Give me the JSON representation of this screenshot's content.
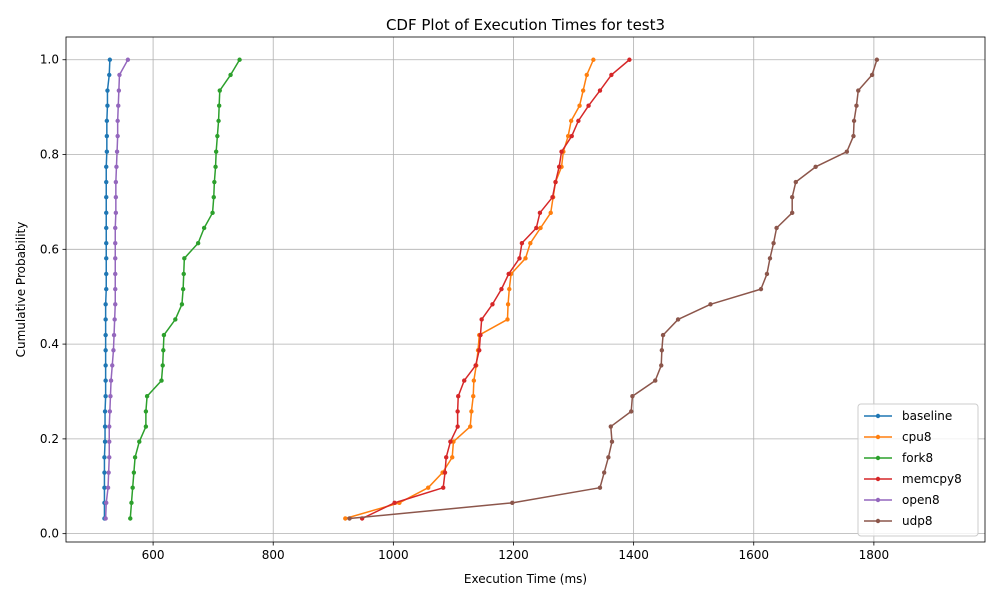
{
  "chart_data": {
    "type": "line",
    "title": "CDF Plot of Execution Times for test3",
    "xlabel": "Execution Time (ms)",
    "ylabel": "Cumulative Probability",
    "xlim": [
      455,
      1985
    ],
    "ylim": [
      -0.0176,
      1.048
    ],
    "xticks": [
      600,
      800,
      1000,
      1200,
      1400,
      1600,
      1800
    ],
    "xtick_labels": [
      "600",
      "800",
      "1000",
      "1200",
      "1400",
      "1600",
      "1800"
    ],
    "yticks": [
      0.0,
      0.2,
      0.4,
      0.6,
      0.8,
      1.0
    ],
    "ytick_labels": [
      "0.0",
      "0.2",
      "0.4",
      "0.6",
      "0.8",
      "1.0"
    ],
    "grid": true,
    "legend_position": "lower-right",
    "y": [
      0.032,
      0.065,
      0.097,
      0.129,
      0.161,
      0.194,
      0.226,
      0.258,
      0.29,
      0.323,
      0.355,
      0.387,
      0.419,
      0.452,
      0.484,
      0.516,
      0.548,
      0.581,
      0.613,
      0.645,
      0.677,
      0.71,
      0.742,
      0.774,
      0.806,
      0.839,
      0.871,
      0.903,
      0.935,
      0.968,
      1.0
    ],
    "series": [
      {
        "name": "baseline",
        "color": "#1f77b4",
        "x": [
          519,
          519,
          519,
          519,
          519,
          520,
          520,
          520,
          521,
          521,
          521,
          521,
          521,
          521,
          521,
          522,
          522,
          522,
          522,
          522,
          522,
          522,
          522,
          522,
          523,
          523,
          523,
          524,
          524,
          527,
          528
        ]
      },
      {
        "name": "cpu8",
        "color": "#ff7f0e",
        "x": [
          920,
          1010,
          1058,
          1082,
          1098,
          1100,
          1128,
          1130,
          1133,
          1134,
          1138,
          1141,
          1143,
          1190,
          1191,
          1193,
          1196,
          1220,
          1228,
          1245,
          1262,
          1266,
          1270,
          1280,
          1283,
          1291,
          1296,
          1310,
          1316,
          1322,
          1333
        ]
      },
      {
        "name": "fork8",
        "color": "#2ca02c",
        "x": [
          562,
          564,
          566,
          568,
          570,
          577,
          588,
          588,
          590,
          614,
          616,
          617,
          618,
          637,
          648,
          650,
          651,
          652,
          675,
          685,
          699,
          701,
          702,
          704,
          705,
          707,
          709,
          710,
          711,
          729,
          744
        ]
      },
      {
        "name": "memcpy8",
        "color": "#d62728",
        "x": [
          948,
          1002,
          1083,
          1086,
          1088,
          1095,
          1107,
          1107,
          1108,
          1118,
          1137,
          1143,
          1145,
          1147,
          1165,
          1180,
          1192,
          1210,
          1214,
          1238,
          1244,
          1265,
          1270,
          1276,
          1280,
          1297,
          1308,
          1325,
          1344,
          1363,
          1393
        ]
      },
      {
        "name": "open8",
        "color": "#9467bd",
        "x": [
          521,
          522,
          525,
          526,
          527,
          527,
          527,
          528,
          529,
          530,
          532,
          534,
          535,
          536,
          537,
          537,
          537,
          537,
          537,
          537,
          538,
          538,
          538,
          539,
          540,
          541,
          541,
          542,
          543,
          544,
          558
        ]
      },
      {
        "name": "udp8",
        "color": "#8c564b",
        "x": [
          927,
          1198,
          1344,
          1351,
          1358,
          1364,
          1362,
          1396,
          1398,
          1436,
          1446,
          1447,
          1449,
          1474,
          1528,
          1612,
          1622,
          1627,
          1633,
          1638,
          1664,
          1664,
          1670,
          1703,
          1755,
          1766,
          1767,
          1771,
          1774,
          1797,
          1805
        ]
      }
    ]
  }
}
